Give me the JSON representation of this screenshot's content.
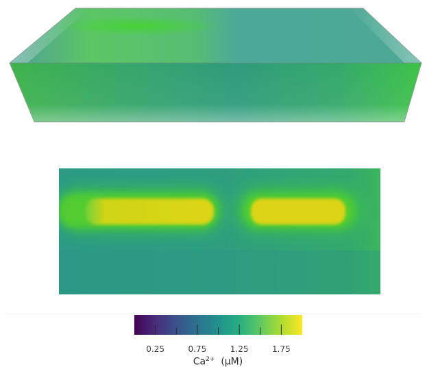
{
  "colors": {
    "background": "#ffffff",
    "viridis_stops": [
      "#440154",
      "#3b528b",
      "#21918c",
      "#5ec962",
      "#fde725"
    ],
    "slice_background": "#2e9a7c",
    "slice_glow": "#3dc93a",
    "slice_core": "#d8d412",
    "volume_base": "#34a26c",
    "volume_edge": "#37c248",
    "volume_outline": "#8a9a92"
  },
  "colorbar": {
    "ticks": [
      {
        "value": 0.25,
        "label": "0.25"
      },
      {
        "value": 0.75,
        "label": "0.75"
      },
      {
        "value": 1.25,
        "label": "1.25"
      },
      {
        "value": 1.75,
        "label": "1.75"
      }
    ],
    "range": [
      0.0,
      2.0
    ],
    "label_main": "Ca",
    "label_sup": "2+",
    "label_unit": "(µM)"
  }
}
